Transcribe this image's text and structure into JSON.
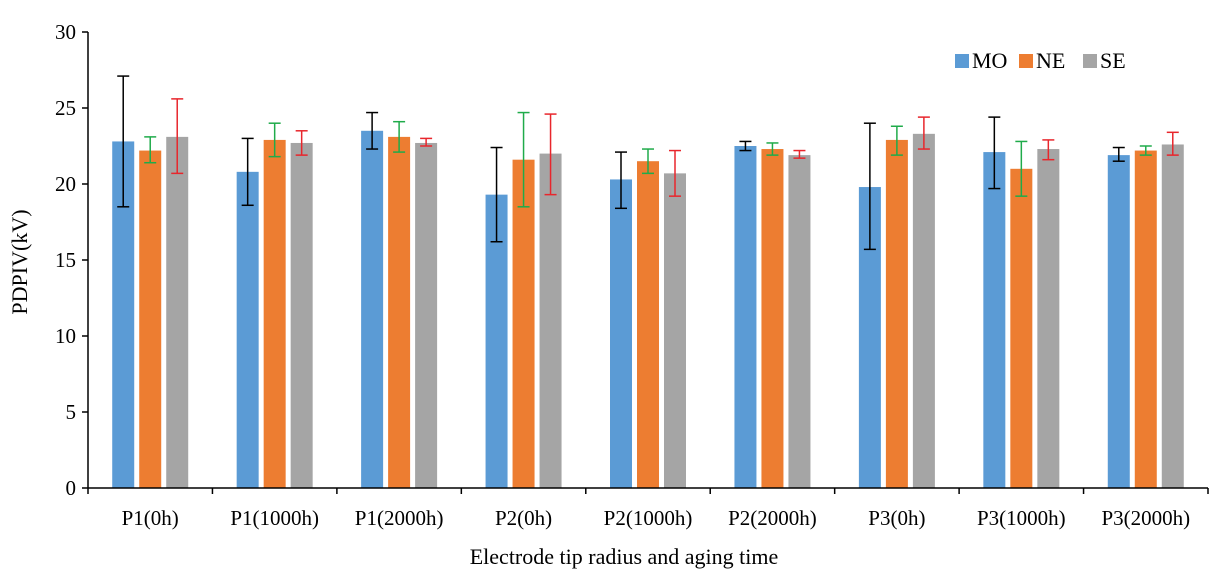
{
  "chart_data": {
    "type": "bar",
    "title": "",
    "xlabel": "Electrode tip radius and aging time",
    "ylabel": "PDPIV(kV)",
    "ylim": [
      0,
      30
    ],
    "yticks": [
      0,
      5,
      10,
      15,
      20,
      25,
      30
    ],
    "categories": [
      "P1(0h)",
      "P1(1000h)",
      "P1(2000h)",
      "P2(0h)",
      "P2(1000h)",
      "P2(2000h)",
      "P3(0h)",
      "P3(1000h)",
      "P3(2000h)"
    ],
    "series": [
      {
        "name": "MO",
        "color": "#5B9BD5",
        "error_color": "#000000",
        "values": [
          22.8,
          20.8,
          23.5,
          19.3,
          20.3,
          22.5,
          19.8,
          22.1,
          21.9
        ],
        "error_low": [
          18.5,
          18.6,
          22.3,
          16.2,
          18.4,
          22.2,
          15.7,
          19.7,
          21.5
        ],
        "error_high": [
          27.1,
          23.0,
          24.7,
          22.4,
          22.1,
          22.8,
          24.0,
          24.4,
          22.4
        ]
      },
      {
        "name": "NE",
        "color": "#ED7D31",
        "error_color": "#1FAB4A",
        "values": [
          22.2,
          22.9,
          23.1,
          21.6,
          21.5,
          22.3,
          22.9,
          21.0,
          22.2
        ],
        "error_low": [
          21.4,
          21.8,
          22.1,
          18.5,
          20.7,
          21.9,
          21.9,
          19.2,
          21.9
        ],
        "error_high": [
          23.1,
          24.0,
          24.1,
          24.7,
          22.3,
          22.7,
          23.8,
          22.8,
          22.5
        ]
      },
      {
        "name": "SE",
        "color": "#A5A5A5",
        "error_color": "#E8262C",
        "values": [
          23.1,
          22.7,
          22.7,
          22.0,
          20.7,
          21.9,
          23.3,
          22.3,
          22.6
        ],
        "error_low": [
          20.7,
          21.9,
          22.5,
          19.3,
          19.2,
          21.7,
          22.3,
          21.6,
          21.9
        ],
        "error_high": [
          25.6,
          23.5,
          23.0,
          24.6,
          22.2,
          22.2,
          24.4,
          22.9,
          23.4
        ]
      }
    ],
    "legend": {
      "position": "top-right"
    },
    "grid": false
  }
}
